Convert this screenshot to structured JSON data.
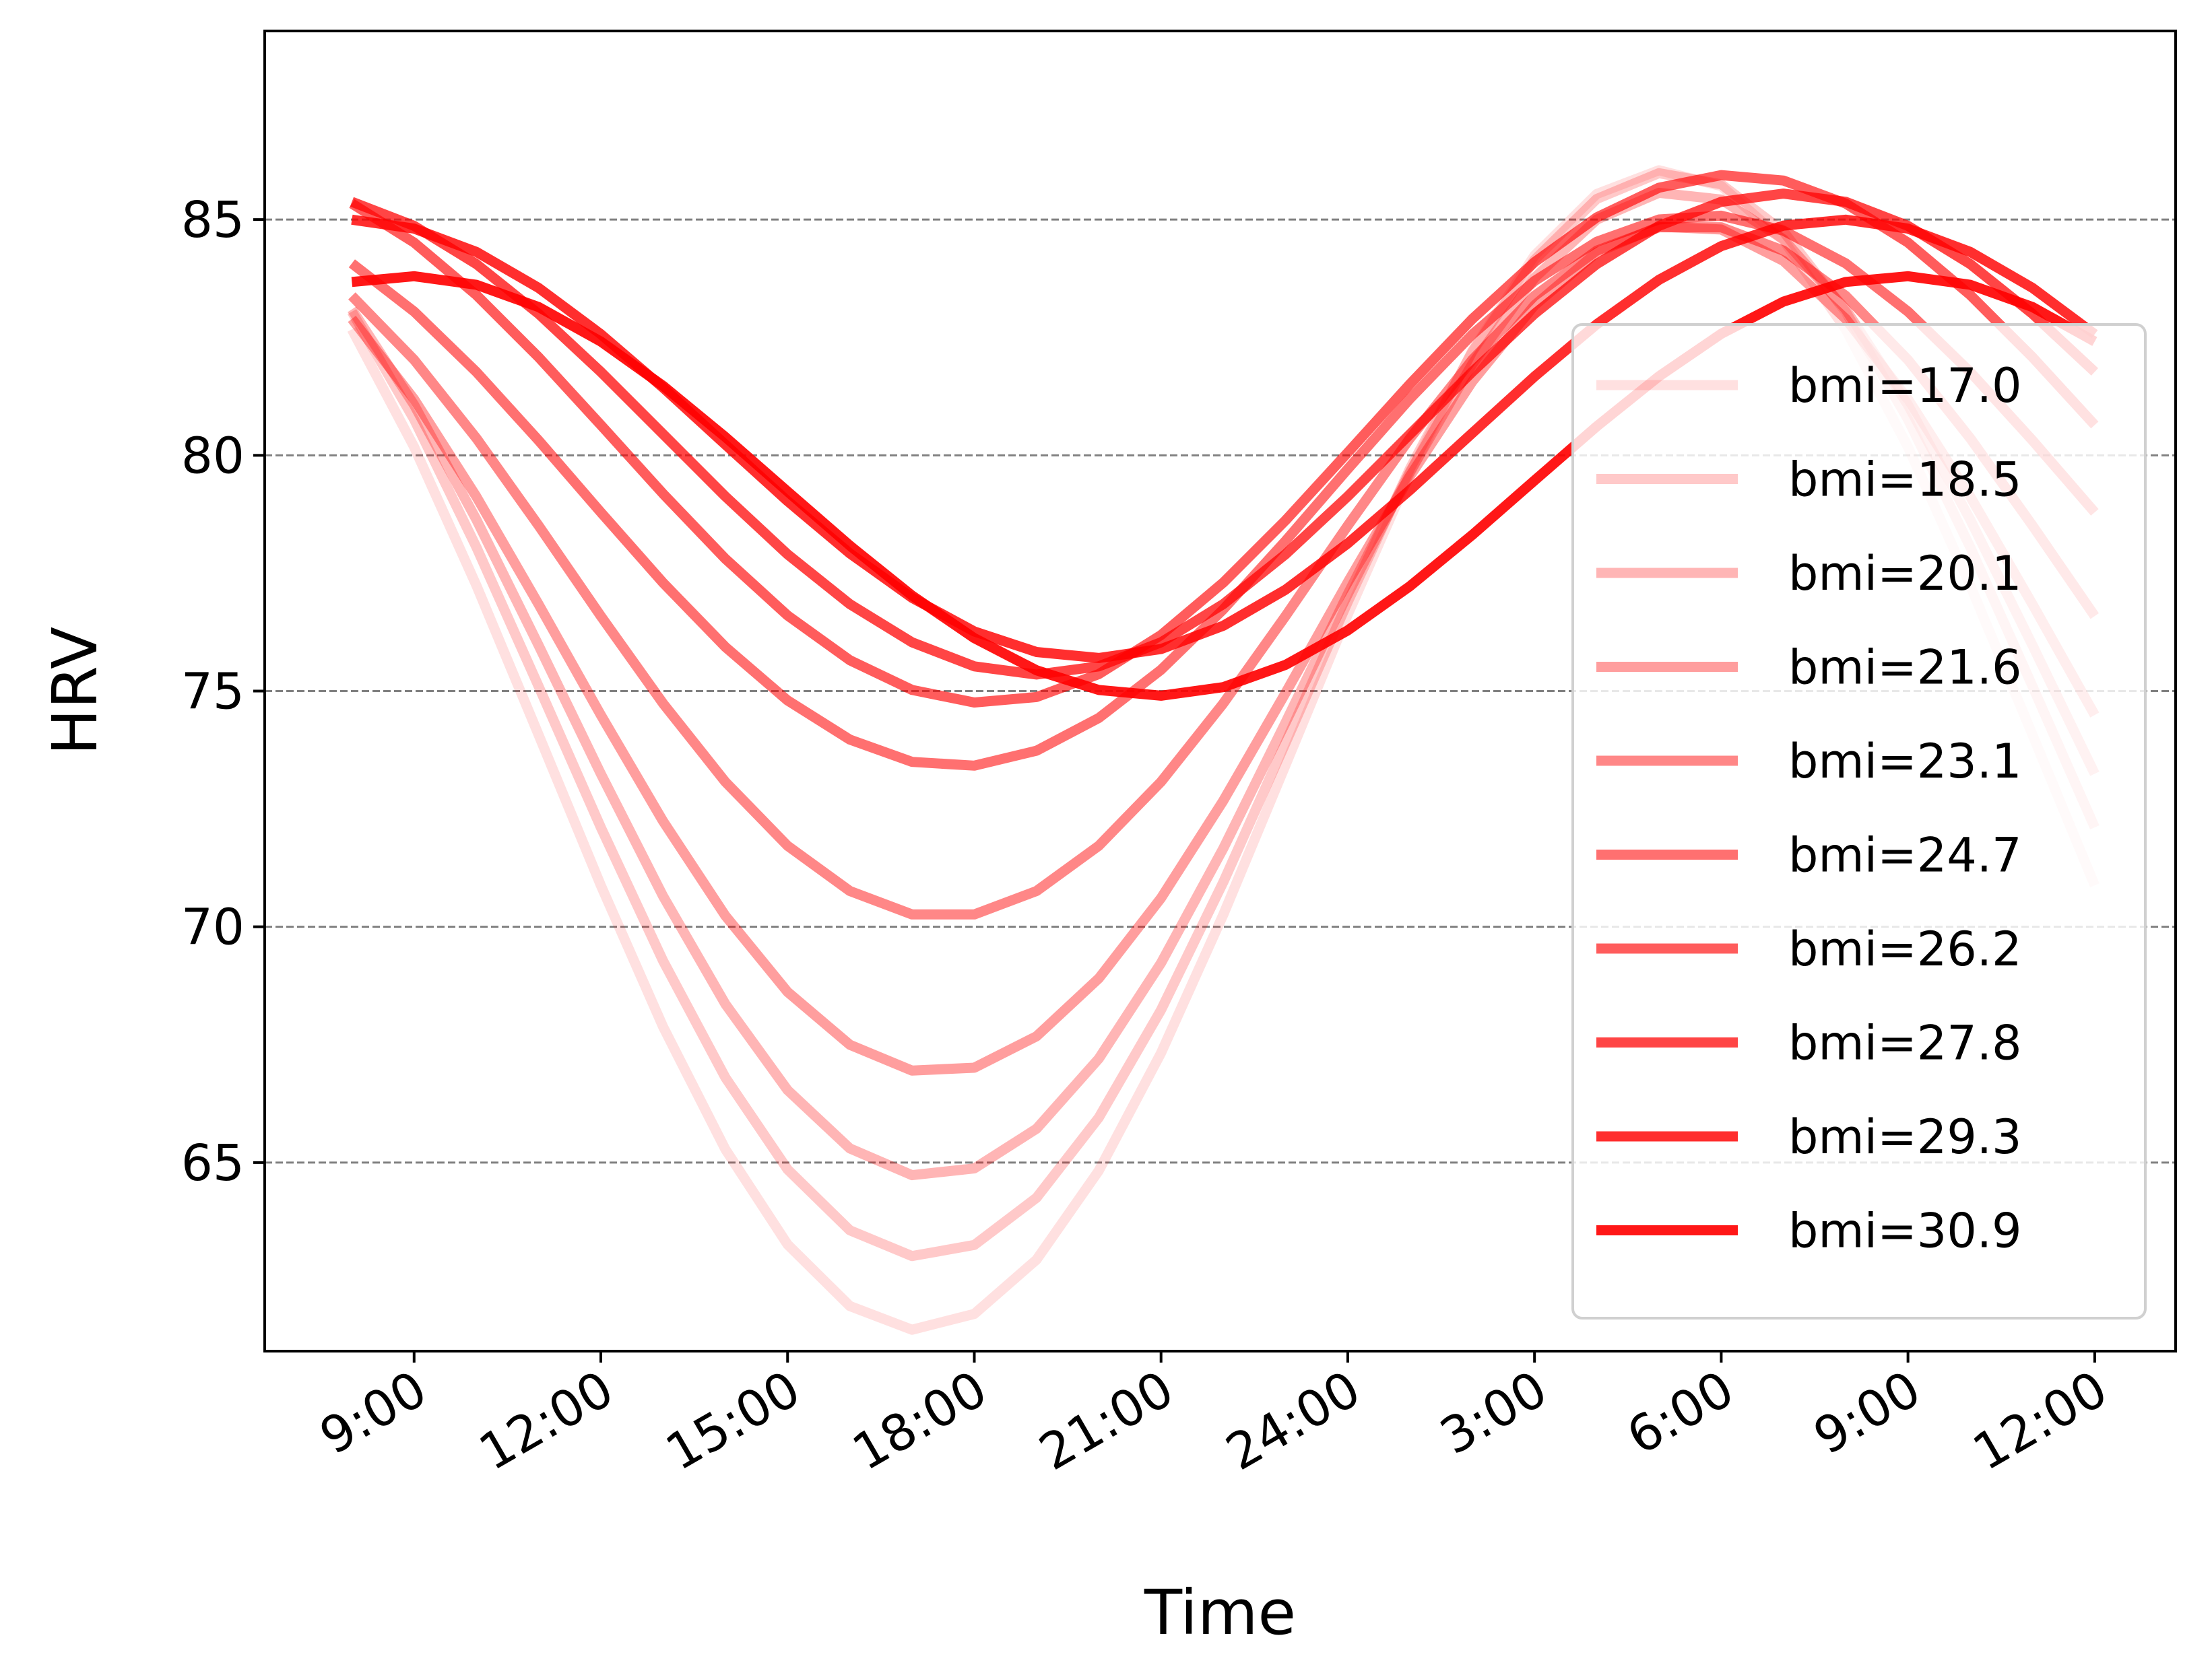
{
  "chart_data": {
    "type": "line",
    "title": "",
    "xlabel": "Time",
    "ylabel": "HRV",
    "x_ticks": [
      "9:00",
      "12:00",
      "15:00",
      "18:00",
      "21:00",
      "24:00",
      "3:00",
      "6:00",
      "9:00",
      "12:00"
    ],
    "x_tick_hours": [
      9,
      12,
      15,
      18,
      21,
      24,
      27,
      30,
      33,
      36
    ],
    "xlim": [
      6.6,
      37.3
    ],
    "y_ticks": [
      65,
      70,
      75,
      80,
      85
    ],
    "ylim": [
      61,
      89
    ],
    "grid": "horizontal-dashed",
    "legend_position": "right",
    "line_color": "#ff0000",
    "series_opacity": [
      0.12,
      0.21,
      0.29,
      0.38,
      0.47,
      0.56,
      0.64,
      0.73,
      0.82,
      0.91
    ],
    "series": [
      {
        "name": "bmi=17.0",
        "x": [
          8,
          36
        ],
        "mean": 73.75,
        "amp": 12.3,
        "peak_hour": 29.1
      },
      {
        "name": "bmi=18.5",
        "x": [
          8,
          36
        ],
        "mean": 74.5,
        "amp": 11.5,
        "peak_hour": 29.2
      },
      {
        "name": "bmi=20.1",
        "x": [
          8,
          36
        ],
        "mean": 75.15,
        "amp": 10.45,
        "peak_hour": 29.3
      },
      {
        "name": "bmi=21.6",
        "x": [
          8,
          36
        ],
        "mean": 75.9,
        "amp": 9.0,
        "peak_hour": 29.4
      },
      {
        "name": "bmi=23.1",
        "x": [
          8,
          36
        ],
        "mean": 77.55,
        "amp": 7.35,
        "peak_hour": 29.5
      },
      {
        "name": "bmi=24.7",
        "x": [
          8,
          36
        ],
        "mean": 79.25,
        "amp": 5.85,
        "peak_hour": 29.7
      },
      {
        "name": "bmi=26.2",
        "x": [
          8,
          36
        ],
        "mean": 80.35,
        "amp": 5.6,
        "peak_hour": 30.2
      },
      {
        "name": "bmi=27.8",
        "x": [
          8,
          36
        ],
        "mean": 80.45,
        "amp": 5.1,
        "peak_hour": 31.0
      },
      {
        "name": "bmi=29.3",
        "x": [
          8,
          36
        ],
        "mean": 80.35,
        "amp": 4.65,
        "peak_hour": 31.9
      },
      {
        "name": "bmi=30.9",
        "x": [
          8,
          36
        ],
        "mean": 79.35,
        "amp": 4.45,
        "peak_hour": 32.9
      }
    ]
  }
}
